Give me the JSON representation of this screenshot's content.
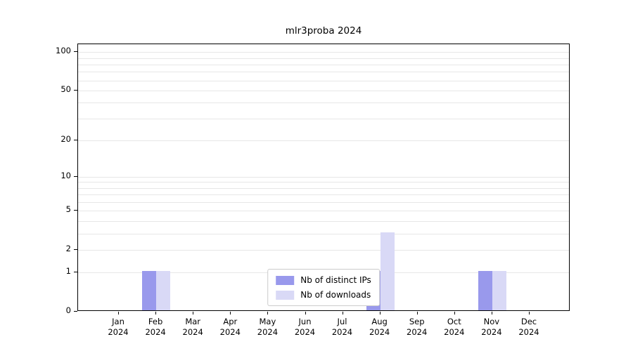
{
  "chart_data": {
    "type": "bar",
    "title": "mlr3proba 2024",
    "categories": [
      "Jan",
      "Feb",
      "Mar",
      "Apr",
      "May",
      "Jun",
      "Jul",
      "Aug",
      "Sep",
      "Oct",
      "Nov",
      "Dec"
    ],
    "x_year_label": "2024",
    "series": [
      {
        "name": "Nb of distinct IPs",
        "color": "#9999ec",
        "values": [
          0,
          1,
          0,
          0,
          0,
          0,
          0,
          1,
          0,
          0,
          1,
          0
        ]
      },
      {
        "name": "Nb of downloads",
        "color": "#d9d9f6",
        "values": [
          0,
          1,
          0,
          0,
          0,
          0,
          0,
          3,
          0,
          0,
          1,
          0
        ]
      }
    ],
    "y_scale": "log1p",
    "y_major_ticks": [
      0,
      1,
      2,
      5,
      10,
      20,
      50,
      100
    ],
    "y_minor_gridlines": [
      1,
      2,
      3,
      4,
      5,
      6,
      7,
      8,
      9,
      10,
      20,
      30,
      40,
      50,
      60,
      70,
      80,
      90,
      100
    ],
    "ylim": [
      0,
      115
    ],
    "legend_position": "lower center",
    "grid": true,
    "grid_color": "#e7e7e7",
    "axis_color": "#000000"
  }
}
